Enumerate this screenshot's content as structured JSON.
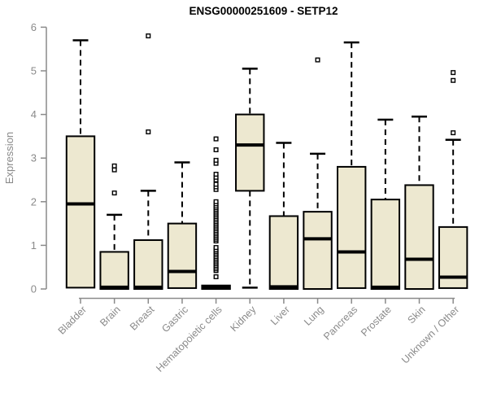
{
  "chart_data": {
    "type": "boxplot",
    "title": "ENSG00000251609 - SETP12",
    "ylabel": "Expression",
    "xlabel": "",
    "ylim": [
      0,
      6
    ],
    "yticks": [
      0,
      1,
      2,
      3,
      4,
      5,
      6
    ],
    "grid": false,
    "legend": "none",
    "colors": {
      "box_fill": "#EDE8D0",
      "box_stroke": "#000000",
      "median": "#000000",
      "whisker": "#000000",
      "outlier_stroke": "#000000",
      "outlier_fill": "#ffffff",
      "axis": "#8a8a8a",
      "tick_label": "#8a8a8a",
      "title": "#000000"
    },
    "categories": [
      "Bladder",
      "Brain",
      "Breast",
      "Gastric",
      "Hematopoietic cells",
      "Kidney",
      "Liver",
      "Lung",
      "Pancreas",
      "Prostate",
      "Skin",
      "Unknown / Other"
    ],
    "boxes": [
      {
        "category": "Bladder",
        "q1": 0.03,
        "median": 1.95,
        "q3": 3.5,
        "whisker_low": null,
        "whisker_high": 5.7,
        "outliers": []
      },
      {
        "category": "Brain",
        "q1": 0.0,
        "median": 0.04,
        "q3": 0.85,
        "whisker_low": null,
        "whisker_high": 1.7,
        "outliers": [
          2.2,
          2.73,
          2.82
        ]
      },
      {
        "category": "Breast",
        "q1": 0.0,
        "median": 0.04,
        "q3": 1.12,
        "whisker_low": null,
        "whisker_high": 2.25,
        "outliers": [
          3.6,
          5.8
        ]
      },
      {
        "category": "Gastric",
        "q1": 0.02,
        "median": 0.4,
        "q3": 1.5,
        "whisker_low": null,
        "whisker_high": 2.9,
        "outliers": []
      },
      {
        "category": "Hematopoietic cells",
        "q1": 0.0,
        "median": 0.03,
        "q3": 0.08,
        "whisker_low": null,
        "whisker_high": null,
        "outliers": [
          0.28,
          0.42,
          0.46,
          0.5,
          0.54,
          0.58,
          0.62,
          0.66,
          0.7,
          0.74,
          0.78,
          0.82,
          0.86,
          0.9,
          0.95,
          1.1,
          1.14,
          1.18,
          1.22,
          1.26,
          1.3,
          1.34,
          1.38,
          1.42,
          1.46,
          1.5,
          1.54,
          1.58,
          1.62,
          1.66,
          1.7,
          1.74,
          1.78,
          1.82,
          1.86,
          1.9,
          1.95,
          2.0,
          2.28,
          2.34,
          2.4,
          2.5,
          2.56,
          2.63,
          2.88,
          2.95,
          3.19,
          3.44
        ]
      },
      {
        "category": "Kidney",
        "q1": 2.25,
        "median": 3.3,
        "q3": 4.0,
        "whisker_low": 0.03,
        "whisker_high": 5.05,
        "outliers": []
      },
      {
        "category": "Liver",
        "q1": 0.0,
        "median": 0.05,
        "q3": 1.67,
        "whisker_low": null,
        "whisker_high": 3.35,
        "outliers": []
      },
      {
        "category": "Lung",
        "q1": 0.0,
        "median": 1.15,
        "q3": 1.77,
        "whisker_low": null,
        "whisker_high": 3.1,
        "outliers": [
          5.25
        ]
      },
      {
        "category": "Pancreas",
        "q1": 0.02,
        "median": 0.85,
        "q3": 2.8,
        "whisker_low": null,
        "whisker_high": 5.65,
        "outliers": []
      },
      {
        "category": "Prostate",
        "q1": 0.0,
        "median": 0.04,
        "q3": 2.05,
        "whisker_low": null,
        "whisker_high": 3.88,
        "outliers": []
      },
      {
        "category": "Skin",
        "q1": 0.0,
        "median": 0.68,
        "q3": 2.38,
        "whisker_low": null,
        "whisker_high": 3.95,
        "outliers": []
      },
      {
        "category": "Unknown / Other",
        "q1": 0.02,
        "median": 0.27,
        "q3": 1.42,
        "whisker_low": null,
        "whisker_high": 3.42,
        "outliers": [
          3.58,
          4.78,
          4.96
        ]
      }
    ]
  }
}
